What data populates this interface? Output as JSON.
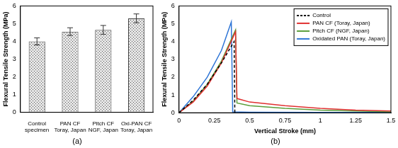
{
  "chart_data": [
    {
      "type": "bar",
      "subtitle": "(a)",
      "y_label": "Flexural Tensile Strength (MPa)",
      "categories": [
        [
          "Control",
          "specimen"
        ],
        [
          "PAN CF",
          "Toray, Japan"
        ],
        [
          "Pitch CF",
          "NGF, Japan"
        ],
        [
          "Oxi-PAN CF",
          "Toray, Japan"
        ]
      ],
      "values": [
        4.0,
        4.55,
        4.65,
        5.3
      ],
      "errors": [
        0.2,
        0.22,
        0.25,
        0.25
      ],
      "color": "#e4e4e4",
      "ylim": [
        0,
        6
      ],
      "yticks": [
        0,
        1,
        2,
        3,
        4,
        5,
        6
      ],
      "grid": false
    },
    {
      "type": "line",
      "subtitle": "(b)",
      "x_label": "Vertical Stroke (mm)",
      "y_label": "Flexural Tensile Strength (MPa)",
      "series": [
        {
          "name": "Control",
          "color": "#000000",
          "line_style": "dashed",
          "x": [
            0,
            0.1,
            0.2,
            0.3,
            0.39,
            0.395
          ],
          "values": [
            0,
            0.7,
            1.6,
            2.8,
            4.0,
            0.0
          ]
        },
        {
          "name": "PAN CF (Toray, Japan)",
          "color": "#e03030",
          "line_style": "solid",
          "x": [
            0,
            0.1,
            0.2,
            0.3,
            0.4,
            0.41,
            0.5,
            0.75,
            1.0,
            1.25,
            1.5
          ],
          "values": [
            0,
            0.6,
            1.5,
            2.8,
            4.55,
            0.8,
            0.6,
            0.4,
            0.25,
            0.15,
            0.1
          ]
        },
        {
          "name": "Pitch CF (NGF, Japan)",
          "color": "#5a9e3a",
          "line_style": "solid",
          "x": [
            0,
            0.1,
            0.2,
            0.3,
            0.4,
            0.41,
            0.5,
            0.75,
            1.0,
            1.25,
            1.5
          ],
          "values": [
            0,
            0.65,
            1.6,
            2.9,
            4.65,
            0.55,
            0.4,
            0.25,
            0.15,
            0.1,
            0.05
          ]
        },
        {
          "name": "Oxidated PAN (Toray, Japan)",
          "color": "#2e75d6",
          "line_style": "solid",
          "x": [
            0,
            0.1,
            0.2,
            0.3,
            0.37,
            0.38,
            0.5,
            1.0,
            1.5
          ],
          "values": [
            0,
            0.9,
            2.0,
            3.5,
            5.1,
            0.05,
            0.03,
            0.02,
            0.02
          ]
        }
      ],
      "xlim": [
        0,
        1.5
      ],
      "xticks": [
        0,
        0.25,
        0.5,
        0.75,
        1,
        1.25,
        1.5
      ],
      "ylim": [
        0,
        6
      ],
      "yticks": [
        0,
        1,
        2,
        3,
        4,
        5,
        6
      ],
      "legend": "upper right",
      "grid": false
    }
  ]
}
